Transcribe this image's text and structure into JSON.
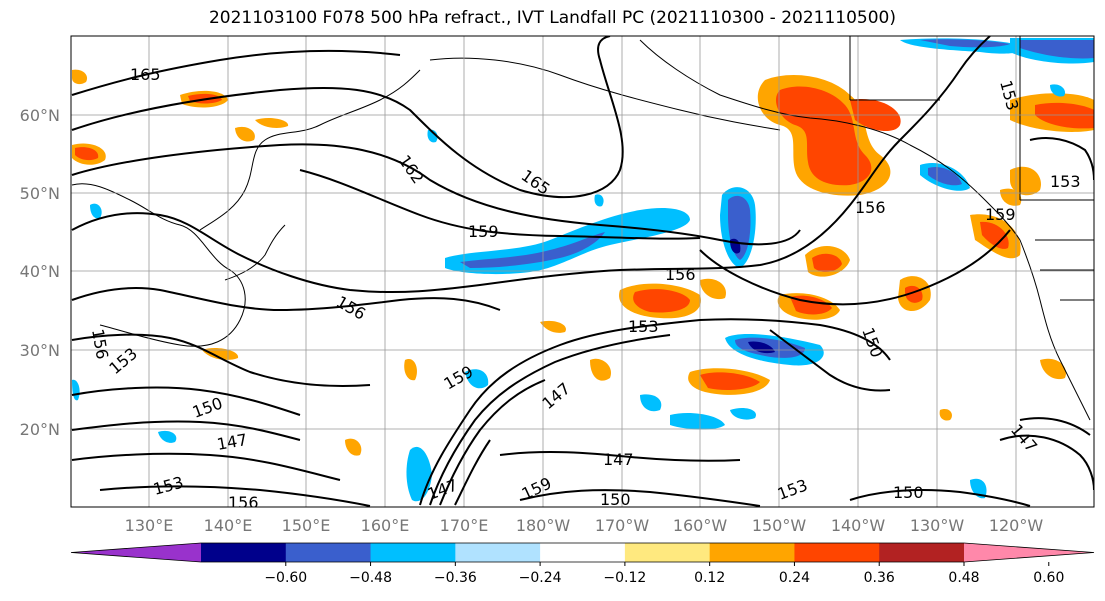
{
  "title": "2021103100 F078 500 hPa refract., IVT Landfall PC (2021110300 - 2021110500)",
  "lat_labels": [
    "60°N",
    "50°N",
    "40°N",
    "30°N",
    "20°N"
  ],
  "lon_labels": [
    "130°E",
    "140°E",
    "150°E",
    "160°E",
    "170°E",
    "180°W",
    "170°W",
    "160°W",
    "150°W",
    "140°W",
    "130°W",
    "120°W"
  ],
  "contour_labels": [
    "165",
    "162",
    "165",
    "159",
    "156",
    "156",
    "156",
    "153",
    "150",
    "153",
    "156",
    "150",
    "147",
    "153",
    "156",
    "159",
    "147",
    "147",
    "147",
    "159",
    "150",
    "153",
    "150",
    "153",
    "153",
    "159",
    "147"
  ],
  "colorbar": {
    "ticks": [
      "−0.60",
      "−0.48",
      "−0.36",
      "−0.24",
      "−0.12",
      "0.12",
      "0.24",
      "0.36",
      "0.48",
      "0.60"
    ],
    "colors": [
      "#9932cc",
      "#00008b",
      "#3a5fcd",
      "#00bfff",
      "#b0e2ff",
      "#ffffff",
      "#ffe97f",
      "#ffa500",
      "#ff4500",
      "#b22222",
      "#ff88aa"
    ]
  }
}
